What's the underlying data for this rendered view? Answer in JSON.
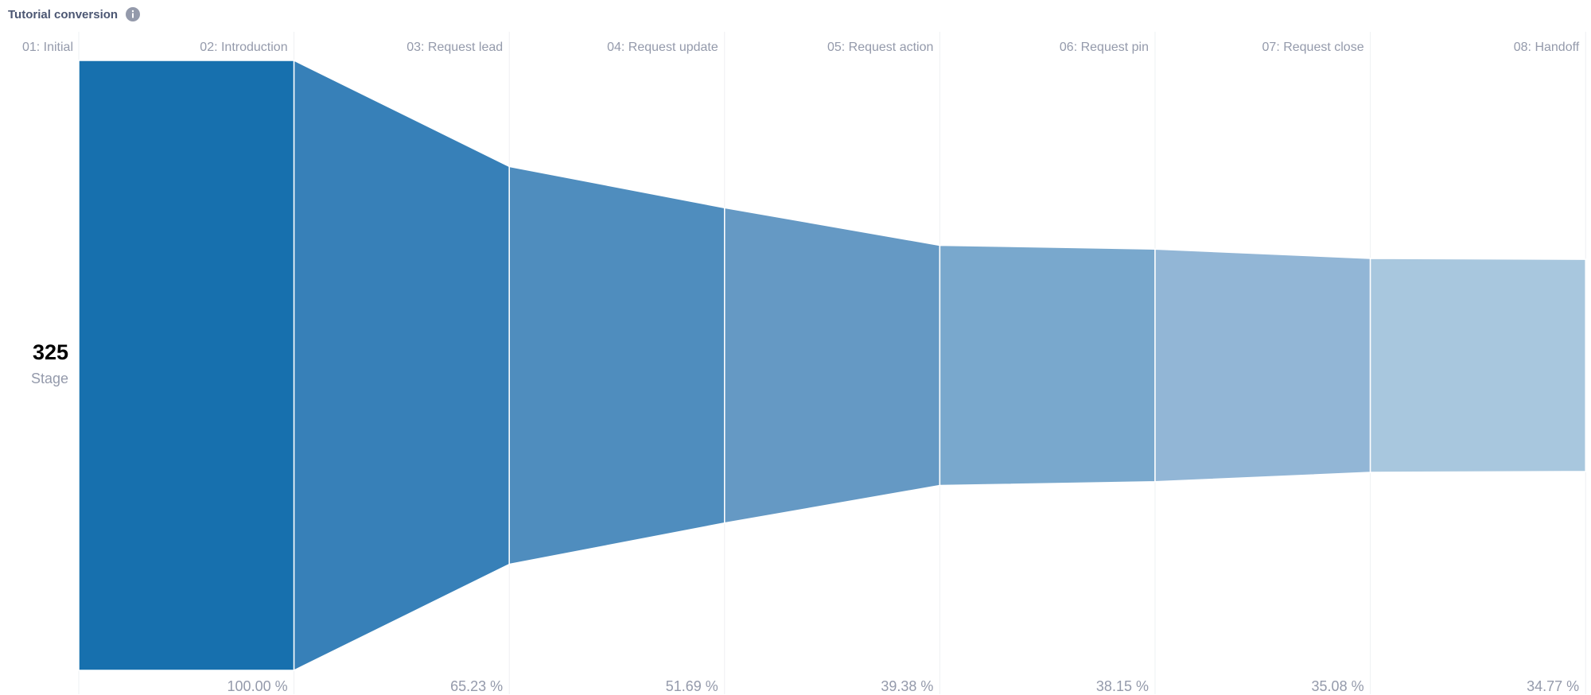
{
  "card": {
    "title": "Tutorial conversion",
    "info_icon": "info-icon"
  },
  "summary": {
    "value": "325",
    "label": "Stage"
  },
  "chart_data": {
    "type": "funnel",
    "title": "Tutorial conversion",
    "metric_label": "Stage",
    "total": 325,
    "steps": [
      "01: Initial",
      "02: Introduction",
      "03: Request lead",
      "04: Request update",
      "05: Request action",
      "06: Request pin",
      "07: Request close",
      "08: Handoff"
    ],
    "percent_values": [
      100.0,
      100.0,
      65.23,
      51.69,
      39.38,
      38.15,
      35.08,
      34.77
    ],
    "percent_labels": [
      "100.00 %",
      "65.23 %",
      "51.69 %",
      "39.38 %",
      "38.15 %",
      "35.08 %",
      "34.77 %"
    ],
    "colors": [
      "#1770ae",
      "#3780b8",
      "#4f8dbe",
      "#6599c4",
      "#79a8cd",
      "#92b6d6",
      "#a8c7de"
    ]
  }
}
